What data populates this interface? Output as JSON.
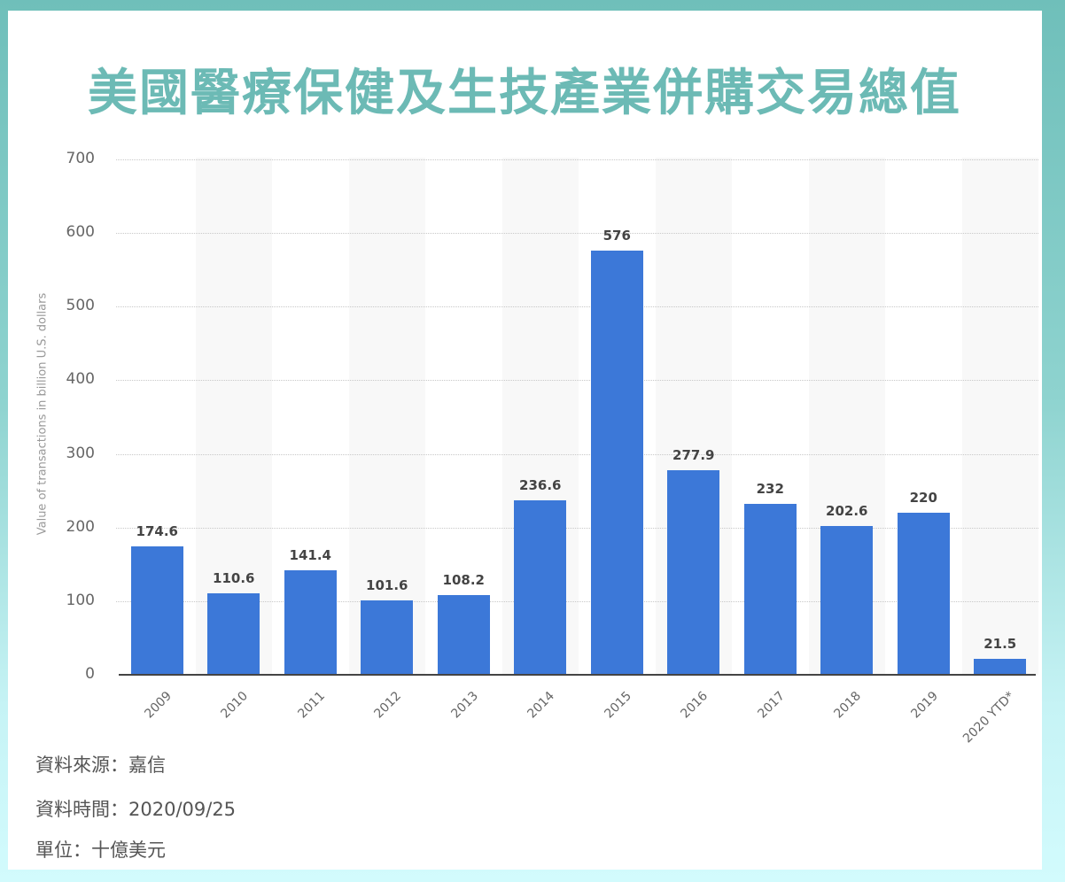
{
  "title": "美國醫療保健及生技產業併購交易總值",
  "colors": {
    "title": "#6cbab5",
    "bar": "#3c78d8",
    "background_top": "#6fbfba",
    "background_bottom": "#d2fbfd"
  },
  "footnotes": {
    "source": "資料來源：嘉信",
    "date": "資料時間：2020/09/25",
    "unit": "單位：十億美元"
  },
  "chart_data": {
    "type": "bar",
    "title": "美國醫療保健及生技產業併購交易總值",
    "xlabel": "",
    "ylabel": "Value of transactions in billion U.S. dollars",
    "categories": [
      "2009",
      "2010",
      "2011",
      "2012",
      "2013",
      "2014",
      "2015",
      "2016",
      "2017",
      "2018",
      "2019",
      "2020 YTD*"
    ],
    "values": [
      174.6,
      110.6,
      141.4,
      101.6,
      108.2,
      236.6,
      576,
      277.9,
      232,
      202.6,
      220,
      21.5
    ],
    "value_labels": [
      "174.6",
      "110.6",
      "141.4",
      "101.6",
      "108.2",
      "236.6",
      "576",
      "277.9",
      "232",
      "202.6",
      "220",
      "21.5"
    ],
    "ylim": [
      0,
      700
    ],
    "yticks": [
      "0",
      "100",
      "200",
      "300",
      "400",
      "500",
      "600",
      "700"
    ],
    "grid": true,
    "legend": "none",
    "unit": "十億美元",
    "source": "嘉信",
    "date": "2020/09/25"
  }
}
